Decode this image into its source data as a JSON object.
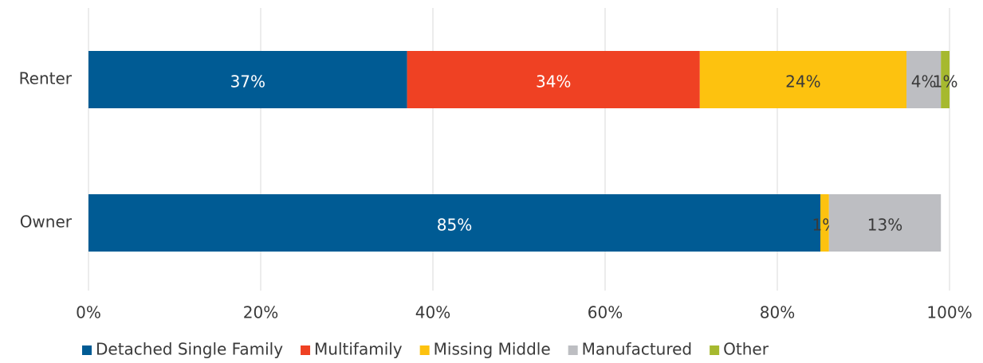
{
  "chart_data": {
    "type": "stacked-bar-horizontal",
    "categories": [
      "Renter",
      "Owner"
    ],
    "series": [
      {
        "name": "Detached Single Family",
        "color": "#005b94",
        "label_color": "#ffffff",
        "values": [
          37,
          85
        ],
        "value_labels": [
          "37%",
          "85%"
        ]
      },
      {
        "name": "Multifamily",
        "color": "#ef4123",
        "label_color": "#ffffff",
        "values": [
          34,
          0
        ],
        "value_labels": [
          "34%",
          null
        ]
      },
      {
        "name": "Missing Middle",
        "color": "#fdc20f",
        "label_color": "#3a3a3a",
        "values": [
          24,
          1
        ],
        "value_labels": [
          "24%",
          "1%"
        ]
      },
      {
        "name": "Manufactured",
        "color": "#bdbec2",
        "label_color": "#3a3a3a",
        "values": [
          4,
          13
        ],
        "value_labels": [
          "4%",
          "13%"
        ]
      },
      {
        "name": "Other",
        "color": "#a6b92f",
        "label_color": "#3a3a3a",
        "values": [
          1,
          0
        ],
        "value_labels": [
          "1%",
          null
        ]
      }
    ],
    "xlim": [
      0,
      100
    ],
    "xticks": [
      {
        "value": 0,
        "label": "0%"
      },
      {
        "value": 20,
        "label": "20%"
      },
      {
        "value": 40,
        "label": "40%"
      },
      {
        "value": 60,
        "label": "60%"
      },
      {
        "value": 80,
        "label": "80%"
      },
      {
        "value": 100,
        "label": "100%"
      }
    ],
    "grid": true,
    "legend": "bottom"
  }
}
